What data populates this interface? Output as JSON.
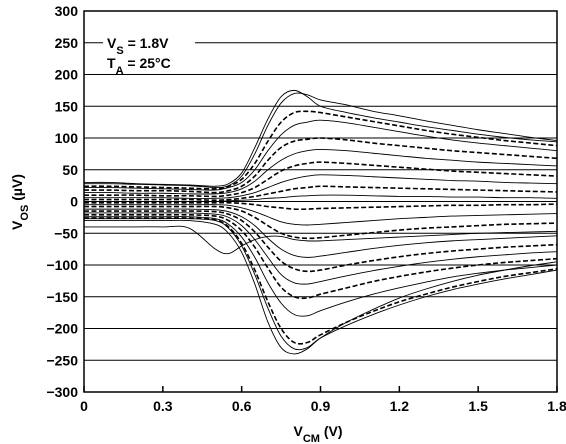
{
  "chart_data": {
    "type": "line",
    "title": "",
    "xlabel": {
      "base": "V",
      "sub": "CM",
      "unit": " (V)"
    },
    "ylabel": {
      "base": "V",
      "sub": "OS",
      "unit": " (µV)"
    },
    "xlim": [
      0,
      1.8
    ],
    "ylim": [
      -300,
      300
    ],
    "x_ticks": [
      0,
      0.3,
      0.6,
      0.9,
      1.2,
      1.5,
      1.8
    ],
    "x_tick_labels": [
      "0",
      "0.3",
      "0.6",
      "0.9",
      "1.2",
      "1.5",
      "1.8"
    ],
    "y_ticks": [
      300,
      250,
      200,
      150,
      100,
      50,
      0,
      -50,
      -100,
      -150,
      -200,
      -250,
      -300
    ],
    "y_tick_labels": [
      "300",
      "250",
      "200",
      "150",
      "100",
      "50",
      "0",
      "−50",
      "−100",
      "−150",
      "−200",
      "−250",
      "−300"
    ],
    "grid": "horizontal",
    "annotations": [
      {
        "base": "V",
        "sub": "S",
        "rest": " = 1.8V"
      },
      {
        "base": "T",
        "sub": "A",
        "rest": " = 25°C"
      }
    ],
    "x": [
      0,
      0.1,
      0.2,
      0.3,
      0.4,
      0.5,
      0.55,
      0.6,
      0.65,
      0.7,
      0.75,
      0.8,
      0.85,
      0.9,
      1.0,
      1.1,
      1.2,
      1.3,
      1.4,
      1.5,
      1.6,
      1.7,
      1.8
    ],
    "series": [
      {
        "style": "solid",
        "values": [
          30,
          30,
          28,
          27,
          26,
          24,
          28,
          45,
          85,
          130,
          165,
          175,
          165,
          150,
          140,
          132,
          125,
          118,
          112,
          106,
          101,
          97,
          94
        ]
      },
      {
        "style": "solid",
        "values": [
          28,
          28,
          27,
          26,
          25,
          22,
          25,
          40,
          75,
          120,
          155,
          170,
          168,
          160,
          152,
          142,
          135,
          127,
          120,
          113,
          107,
          101,
          96
        ]
      },
      {
        "style": "dashed",
        "values": [
          24,
          24,
          23,
          22,
          21,
          20,
          24,
          35,
          60,
          95,
          125,
          140,
          142,
          140,
          133,
          126,
          119,
          112,
          106,
          101,
          96,
          92,
          88
        ]
      },
      {
        "style": "solid",
        "values": [
          22,
          22,
          21,
          20,
          19,
          18,
          22,
          30,
          50,
          80,
          105,
          120,
          125,
          128,
          124,
          117,
          110,
          103,
          97,
          92,
          88,
          84,
          80
        ]
      },
      {
        "style": "dashed",
        "values": [
          18,
          18,
          17,
          17,
          16,
          14,
          17,
          24,
          40,
          65,
          85,
          95,
          98,
          100,
          97,
          92,
          88,
          84,
          80,
          77,
          74,
          71,
          68
        ]
      },
      {
        "style": "solid",
        "values": [
          14,
          14,
          13,
          13,
          12,
          12,
          14,
          20,
          32,
          50,
          65,
          75,
          80,
          82,
          80,
          76,
          72,
          68,
          65,
          62,
          60,
          58,
          56
        ]
      },
      {
        "style": "dashed",
        "values": [
          10,
          10,
          10,
          9,
          9,
          8,
          10,
          14,
          22,
          35,
          48,
          56,
          60,
          62,
          60,
          57,
          54,
          51,
          48,
          46,
          44,
          42,
          40
        ]
      },
      {
        "style": "solid",
        "values": [
          6,
          6,
          6,
          6,
          5,
          5,
          6,
          9,
          14,
          22,
          30,
          36,
          40,
          42,
          41,
          39,
          37,
          35,
          33,
          32,
          30,
          29,
          28
        ]
      },
      {
        "style": "dashed",
        "values": [
          3,
          3,
          3,
          3,
          3,
          2,
          3,
          5,
          8,
          12,
          16,
          20,
          22,
          24,
          23,
          22,
          21,
          20,
          19,
          18,
          17,
          16,
          15
        ]
      },
      {
        "style": "solid",
        "values": [
          0,
          0,
          0,
          0,
          0,
          0,
          1,
          2,
          3,
          5,
          6,
          8,
          9,
          10,
          10,
          9,
          8,
          8,
          7,
          7,
          6,
          6,
          5
        ]
      },
      {
        "style": "dashed",
        "values": [
          -2,
          -2,
          -2,
          -2,
          -2,
          -2,
          -2,
          -3,
          -5,
          -8,
          -10,
          -12,
          -12,
          -11,
          -10,
          -9,
          -8,
          -7,
          -6,
          -6,
          -5,
          -5,
          -4
        ]
      },
      {
        "style": "solid",
        "values": [
          -5,
          -5,
          -5,
          -5,
          -5,
          -5,
          -6,
          -10,
          -16,
          -24,
          -32,
          -36,
          -37,
          -36,
          -33,
          -30,
          -27,
          -25,
          -23,
          -22,
          -21,
          -20,
          -19
        ]
      },
      {
        "style": "dashed",
        "values": [
          -8,
          -8,
          -8,
          -8,
          -8,
          -8,
          -10,
          -15,
          -25,
          -38,
          -50,
          -56,
          -58,
          -57,
          -53,
          -49,
          -45,
          -42,
          -40,
          -38,
          -36,
          -35,
          -34
        ]
      },
      {
        "style": "solid",
        "values": [
          -12,
          -12,
          -12,
          -12,
          -12,
          -13,
          -16,
          -24,
          -38,
          -58,
          -75,
          -85,
          -88,
          -86,
          -80,
          -74,
          -69,
          -65,
          -62,
          -60,
          -58,
          -56,
          -54
        ]
      },
      {
        "style": "dashed",
        "values": [
          -15,
          -15,
          -15,
          -15,
          -15,
          -16,
          -20,
          -30,
          -48,
          -72,
          -94,
          -106,
          -110,
          -108,
          -100,
          -93,
          -87,
          -82,
          -78,
          -75,
          -72,
          -70,
          -68
        ]
      },
      {
        "style": "solid",
        "values": [
          -18,
          -18,
          -18,
          -18,
          -18,
          -20,
          -25,
          -38,
          -60,
          -88,
          -115,
          -128,
          -130,
          -126,
          -117,
          -109,
          -102,
          -96,
          -91,
          -87,
          -84,
          -81,
          -79
        ]
      },
      {
        "style": "dashed",
        "values": [
          -21,
          -21,
          -21,
          -21,
          -21,
          -23,
          -30,
          -46,
          -72,
          -105,
          -135,
          -150,
          -152,
          -146,
          -136,
          -126,
          -118,
          -111,
          -105,
          -100,
          -96,
          -93,
          -90
        ]
      },
      {
        "style": "solid",
        "values": [
          -24,
          -24,
          -24,
          -24,
          -24,
          -27,
          -36,
          -56,
          -88,
          -128,
          -160,
          -178,
          -180,
          -172,
          -158,
          -146,
          -136,
          -127,
          -119,
          -113,
          -108,
          -104,
          -100
        ]
      },
      {
        "style": "solid",
        "values": [
          -27,
          -27,
          -27,
          -27,
          -27,
          -30,
          -42,
          -70,
          -115,
          -168,
          -212,
          -232,
          -230,
          -215,
          -195,
          -178,
          -163,
          -150,
          -139,
          -130,
          -122,
          -115,
          -108
        ]
      },
      {
        "style": "dashed",
        "values": [
          -26,
          -26,
          -26,
          -26,
          -26,
          -29,
          -40,
          -66,
          -108,
          -158,
          -200,
          -222,
          -222,
          -210,
          -190,
          -173,
          -158,
          -146,
          -135,
          -126,
          -118,
          -112,
          -106
        ]
      },
      {
        "style": "solid",
        "values": [
          -30,
          -30,
          -30,
          -30,
          -30,
          -36,
          -50,
          -80,
          -130,
          -190,
          -230,
          -240,
          -232,
          -215,
          -190,
          -170,
          -152,
          -138,
          -126,
          -116,
          -108,
          -101,
          -95
        ]
      },
      {
        "style": "solid",
        "values": [
          -40,
          -40,
          -40,
          -40,
          -42,
          -75,
          -82,
          -70,
          -60,
          -55,
          -55,
          -60,
          -62,
          -62,
          -60,
          -58,
          -56,
          -54,
          -52,
          -50,
          -49,
          -48,
          -47
        ]
      }
    ]
  }
}
